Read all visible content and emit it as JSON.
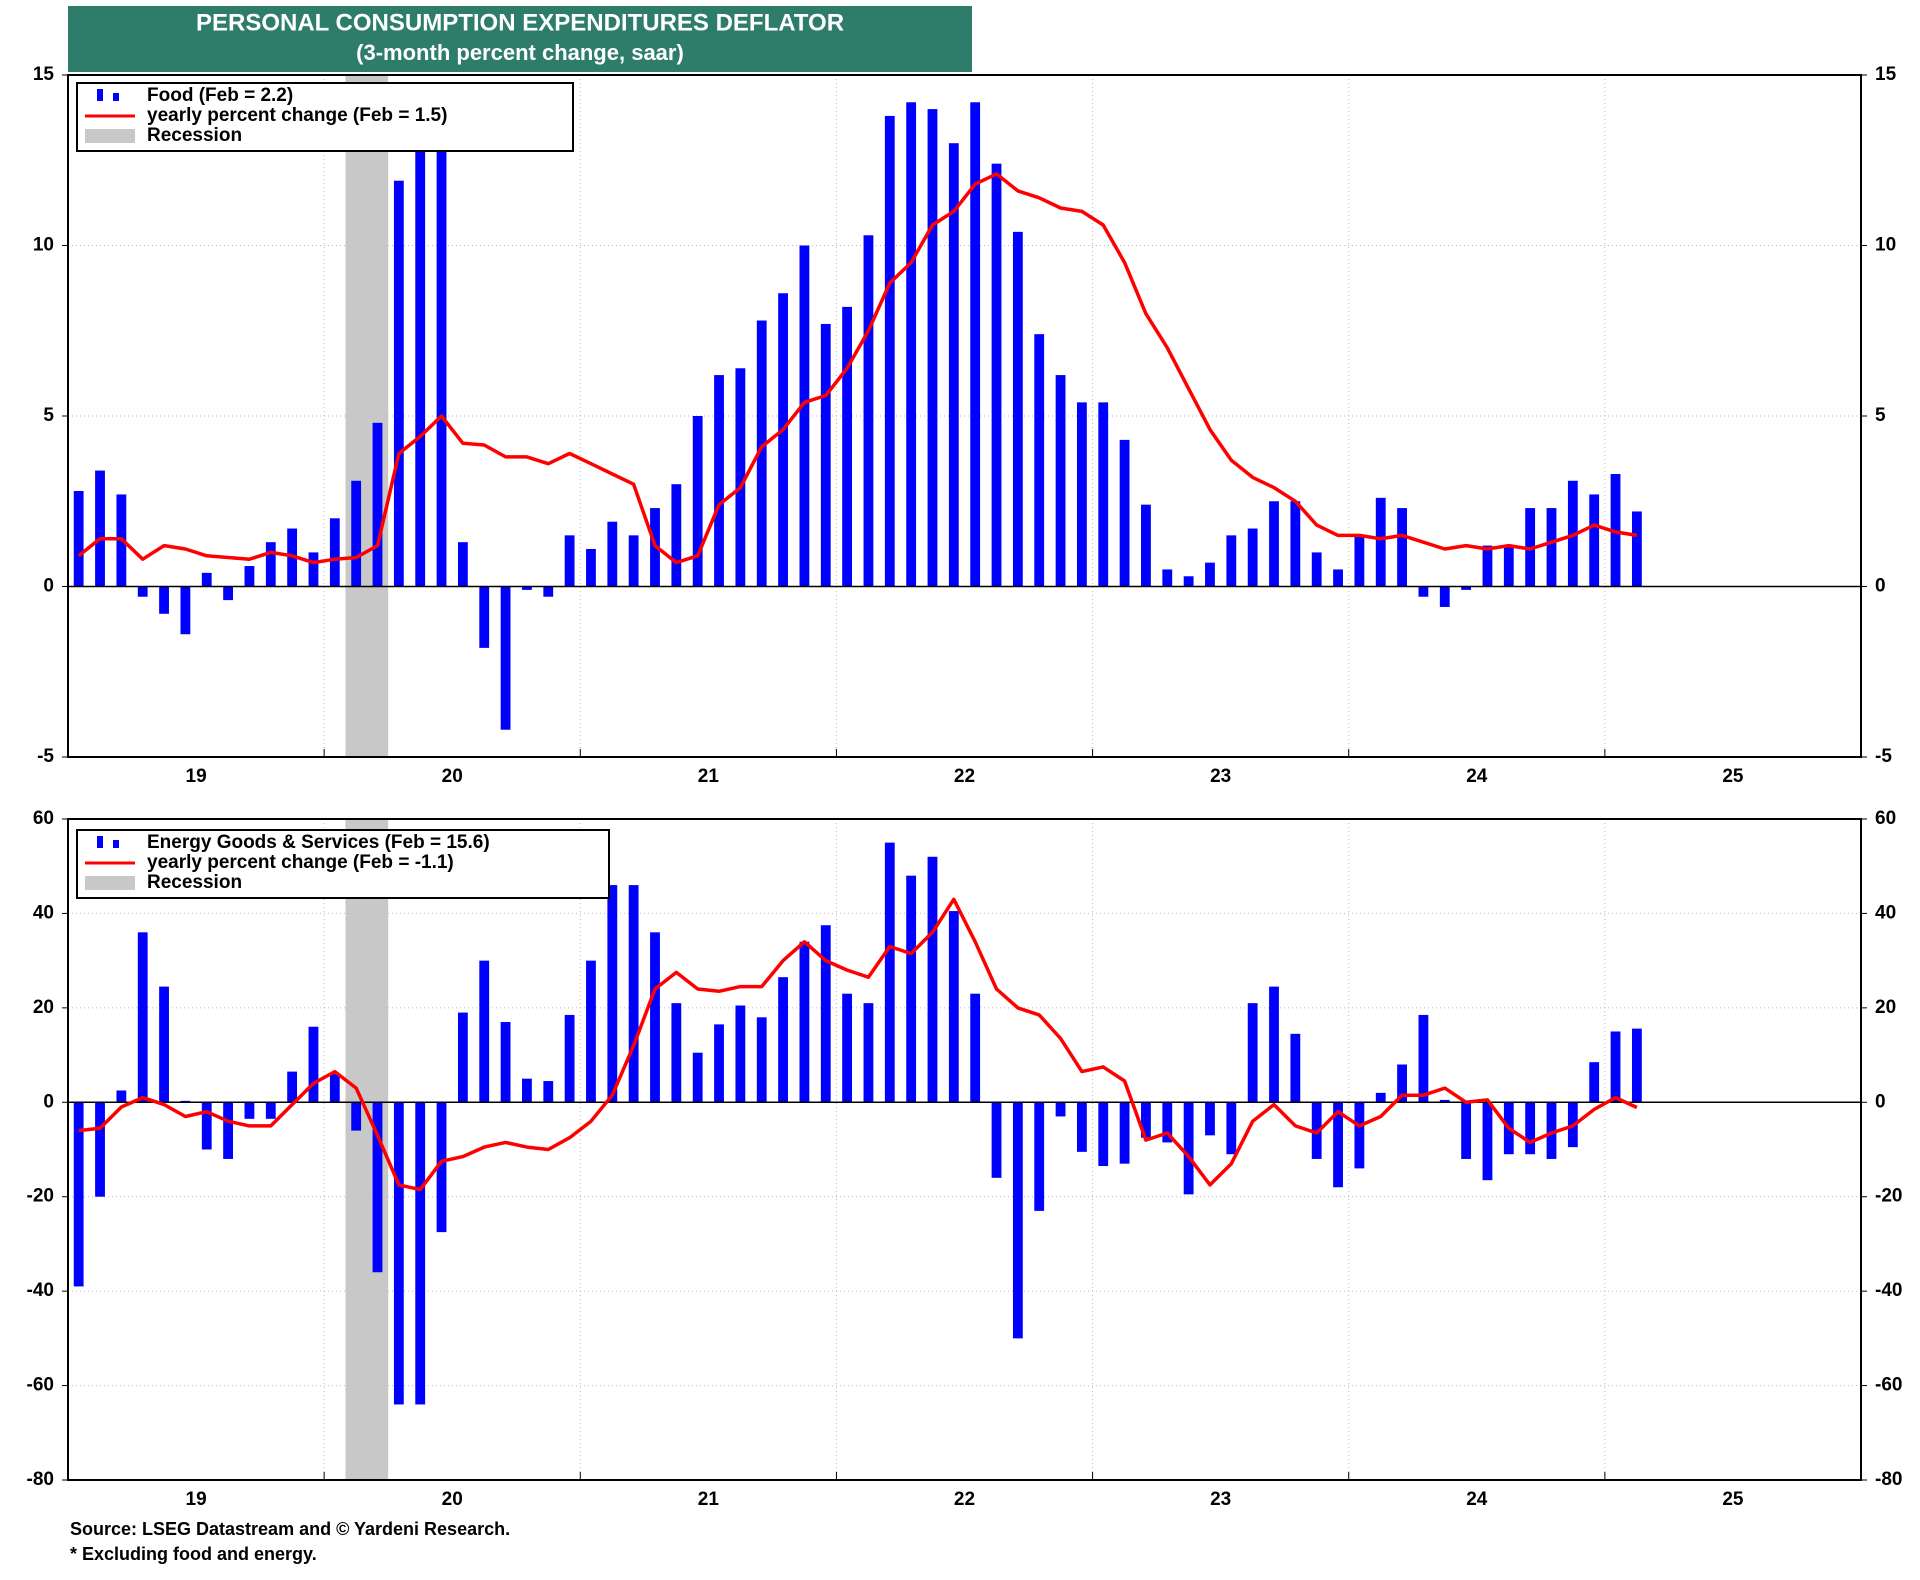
{
  "title": "PERSONAL CONSUMPTION EXPENDITURES DEFLATOR",
  "subtitle": "(3-month percent change, saar)",
  "source": "Source: LSEG Datastream and © Yardeni Research.",
  "note": "* Excluding food and energy.",
  "chart_data": [
    {
      "type": "combo",
      "categories": [
        null,
        null,
        null,
        null,
        null,
        null,
        null,
        null,
        null,
        null,
        null,
        null,
        null,
        null,
        null,
        null,
        null,
        null,
        null,
        null,
        null,
        null,
        null,
        null,
        null,
        null,
        null,
        null,
        null,
        null,
        null,
        null,
        null,
        null,
        null,
        null,
        null,
        null,
        null,
        null,
        null,
        null,
        null,
        null,
        null,
        null,
        null,
        null,
        null,
        null,
        null,
        null,
        null,
        null,
        null,
        null,
        null,
        null,
        null,
        null,
        null,
        null,
        null,
        null,
        null,
        null,
        null,
        null,
        null,
        null,
        null,
        null,
        null,
        null
      ],
      "xlim": [
        2019,
        2026
      ],
      "xticks": [
        {
          "value": 2019,
          "label": "19"
        },
        {
          "value": 2020,
          "label": "20"
        },
        {
          "value": 2021,
          "label": "21"
        },
        {
          "value": 2022,
          "label": "22"
        },
        {
          "value": 2023,
          "label": "23"
        },
        {
          "value": 2024,
          "label": "24"
        },
        {
          "value": 2025,
          "label": "25"
        }
      ],
      "ylim": [
        -5,
        15
      ],
      "yticks": [
        -5,
        0,
        5,
        10,
        15
      ],
      "grid": true,
      "legend": "top-left",
      "recession": {
        "name": "Recession",
        "color": "#c8c8c8",
        "span": [
          2020.0833,
          2020.25
        ]
      },
      "series": [
        {
          "name": "Food (Feb = 2.2)",
          "type": "bar",
          "color": "#0000ff",
          "values": [
            2.8,
            3.4,
            2.7,
            -0.3,
            -0.8,
            -1.4,
            0.4,
            -0.4,
            0.6,
            1.3,
            1.7,
            1.0,
            2.0,
            3.1,
            4.8,
            11.9,
            13.0,
            13.0,
            1.3,
            -1.8,
            -4.2,
            -0.1,
            -0.3,
            1.5,
            1.1,
            1.9,
            1.5,
            2.3,
            3.0,
            5.0,
            6.2,
            6.4,
            7.8,
            8.6,
            10.0,
            7.7,
            8.2,
            10.3,
            13.8,
            14.2,
            14.0,
            13.0,
            14.2,
            12.4,
            10.4,
            7.4,
            6.2,
            5.4,
            5.4,
            4.3,
            2.4,
            0.5,
            0.3,
            0.7,
            1.5,
            1.7,
            2.5,
            2.5,
            1.0,
            0.5,
            1.5,
            2.6,
            2.3,
            -0.3,
            -0.6,
            -0.1,
            1.2,
            1.2,
            2.3,
            2.3,
            3.1,
            2.7,
            3.3,
            2.2
          ]
        },
        {
          "name": "yearly percent change (Feb = 1.5)",
          "type": "line",
          "color": "#ff0000",
          "values": [
            0.9,
            1.4,
            1.4,
            0.8,
            1.2,
            1.1,
            0.9,
            0.85,
            0.8,
            1.0,
            0.9,
            0.7,
            0.8,
            0.85,
            1.2,
            3.9,
            4.4,
            5.0,
            4.2,
            4.15,
            3.8,
            3.8,
            3.6,
            3.9,
            3.6,
            3.3,
            3.0,
            1.2,
            0.7,
            0.9,
            2.4,
            2.9,
            4.1,
            4.6,
            5.4,
            5.6,
            6.4,
            7.5,
            8.9,
            9.5,
            10.6,
            11.0,
            11.8,
            12.1,
            11.6,
            11.4,
            11.1,
            11.0,
            10.6,
            9.5,
            8.0,
            7.0,
            5.8,
            4.6,
            3.7,
            3.2,
            2.9,
            2.5,
            1.8,
            1.5,
            1.5,
            1.4,
            1.5,
            1.3,
            1.1,
            1.2,
            1.1,
            1.2,
            1.1,
            1.3,
            1.5,
            1.8,
            1.6,
            1.5
          ]
        }
      ]
    },
    {
      "type": "combo",
      "categories": [
        null,
        null,
        null,
        null,
        null,
        null,
        null,
        null,
        null,
        null,
        null,
        null,
        null,
        null,
        null,
        null,
        null,
        null,
        null,
        null,
        null,
        null,
        null,
        null,
        null,
        null,
        null,
        null,
        null,
        null,
        null,
        null,
        null,
        null,
        null,
        null,
        null,
        null,
        null,
        null,
        null,
        null,
        null,
        null,
        null,
        null,
        null,
        null,
        null,
        null,
        null,
        null,
        null,
        null,
        null,
        null,
        null,
        null,
        null,
        null,
        null,
        null,
        null,
        null,
        null,
        null,
        null,
        null,
        null,
        null,
        null,
        null,
        null,
        null
      ],
      "xlim": [
        2019,
        2026
      ],
      "xticks": [
        {
          "value": 2019,
          "label": "19"
        },
        {
          "value": 2020,
          "label": "20"
        },
        {
          "value": 2021,
          "label": "21"
        },
        {
          "value": 2022,
          "label": "22"
        },
        {
          "value": 2023,
          "label": "23"
        },
        {
          "value": 2024,
          "label": "24"
        },
        {
          "value": 2025,
          "label": "25"
        }
      ],
      "ylim": [
        -80,
        60
      ],
      "yticks": [
        -80,
        -60,
        -40,
        -20,
        0,
        20,
        40,
        60
      ],
      "grid": true,
      "legend": "top-left",
      "recession": {
        "name": "Recession",
        "color": "#c8c8c8",
        "span": [
          2020.0833,
          2020.25
        ]
      },
      "series": [
        {
          "name": "Energy Goods & Services (Feb = 15.6)",
          "type": "bar",
          "color": "#0000ff",
          "values": [
            -39,
            -20,
            2.5,
            36,
            24.5,
            0.3,
            -10,
            -12,
            -3.5,
            -3.5,
            6.5,
            16,
            6,
            -6,
            -36,
            -64,
            -64,
            -27.5,
            19,
            30,
            17,
            5,
            4.5,
            18.5,
            30,
            46,
            46,
            36,
            21,
            10.5,
            16.5,
            20.5,
            18,
            26.5,
            34,
            37.5,
            23,
            21,
            55,
            48,
            52,
            40.5,
            23,
            -16,
            -50,
            -23,
            -3,
            -10.5,
            -13.5,
            -13,
            -7.5,
            -8.5,
            -19.5,
            -7,
            -11,
            21,
            24.5,
            14.5,
            -12,
            -18,
            -14,
            2,
            8,
            18.5,
            0.5,
            -12,
            -16.5,
            -11,
            -11,
            -12,
            -9.5,
            8.5,
            15,
            15.6
          ]
        },
        {
          "name": "yearly percent change (Feb = -1.1)",
          "type": "line",
          "color": "#ff0000",
          "values": [
            -6,
            -5.5,
            -1,
            1,
            -0.5,
            -3,
            -2,
            -4,
            -5,
            -5,
            -0.5,
            4,
            6.5,
            3,
            -7,
            -17.5,
            -18.5,
            -12.5,
            -11.5,
            -9.5,
            -8.5,
            -9.5,
            -10,
            -7.5,
            -4,
            1.5,
            12,
            24,
            27.5,
            24,
            23.5,
            24.5,
            24.5,
            30,
            34,
            30,
            28,
            26.5,
            33,
            31.5,
            36,
            43,
            34,
            24,
            20,
            18.5,
            13.5,
            6.5,
            7.5,
            4.5,
            -8,
            -6.5,
            -11.5,
            -17.5,
            -13,
            -4,
            -0.5,
            -5,
            -6.5,
            -2,
            -5,
            -3,
            1.5,
            1.5,
            3,
            0,
            0.5,
            -5.5,
            -8.5,
            -6.5,
            -5,
            -1.5,
            1,
            -1.1
          ]
        }
      ]
    }
  ]
}
